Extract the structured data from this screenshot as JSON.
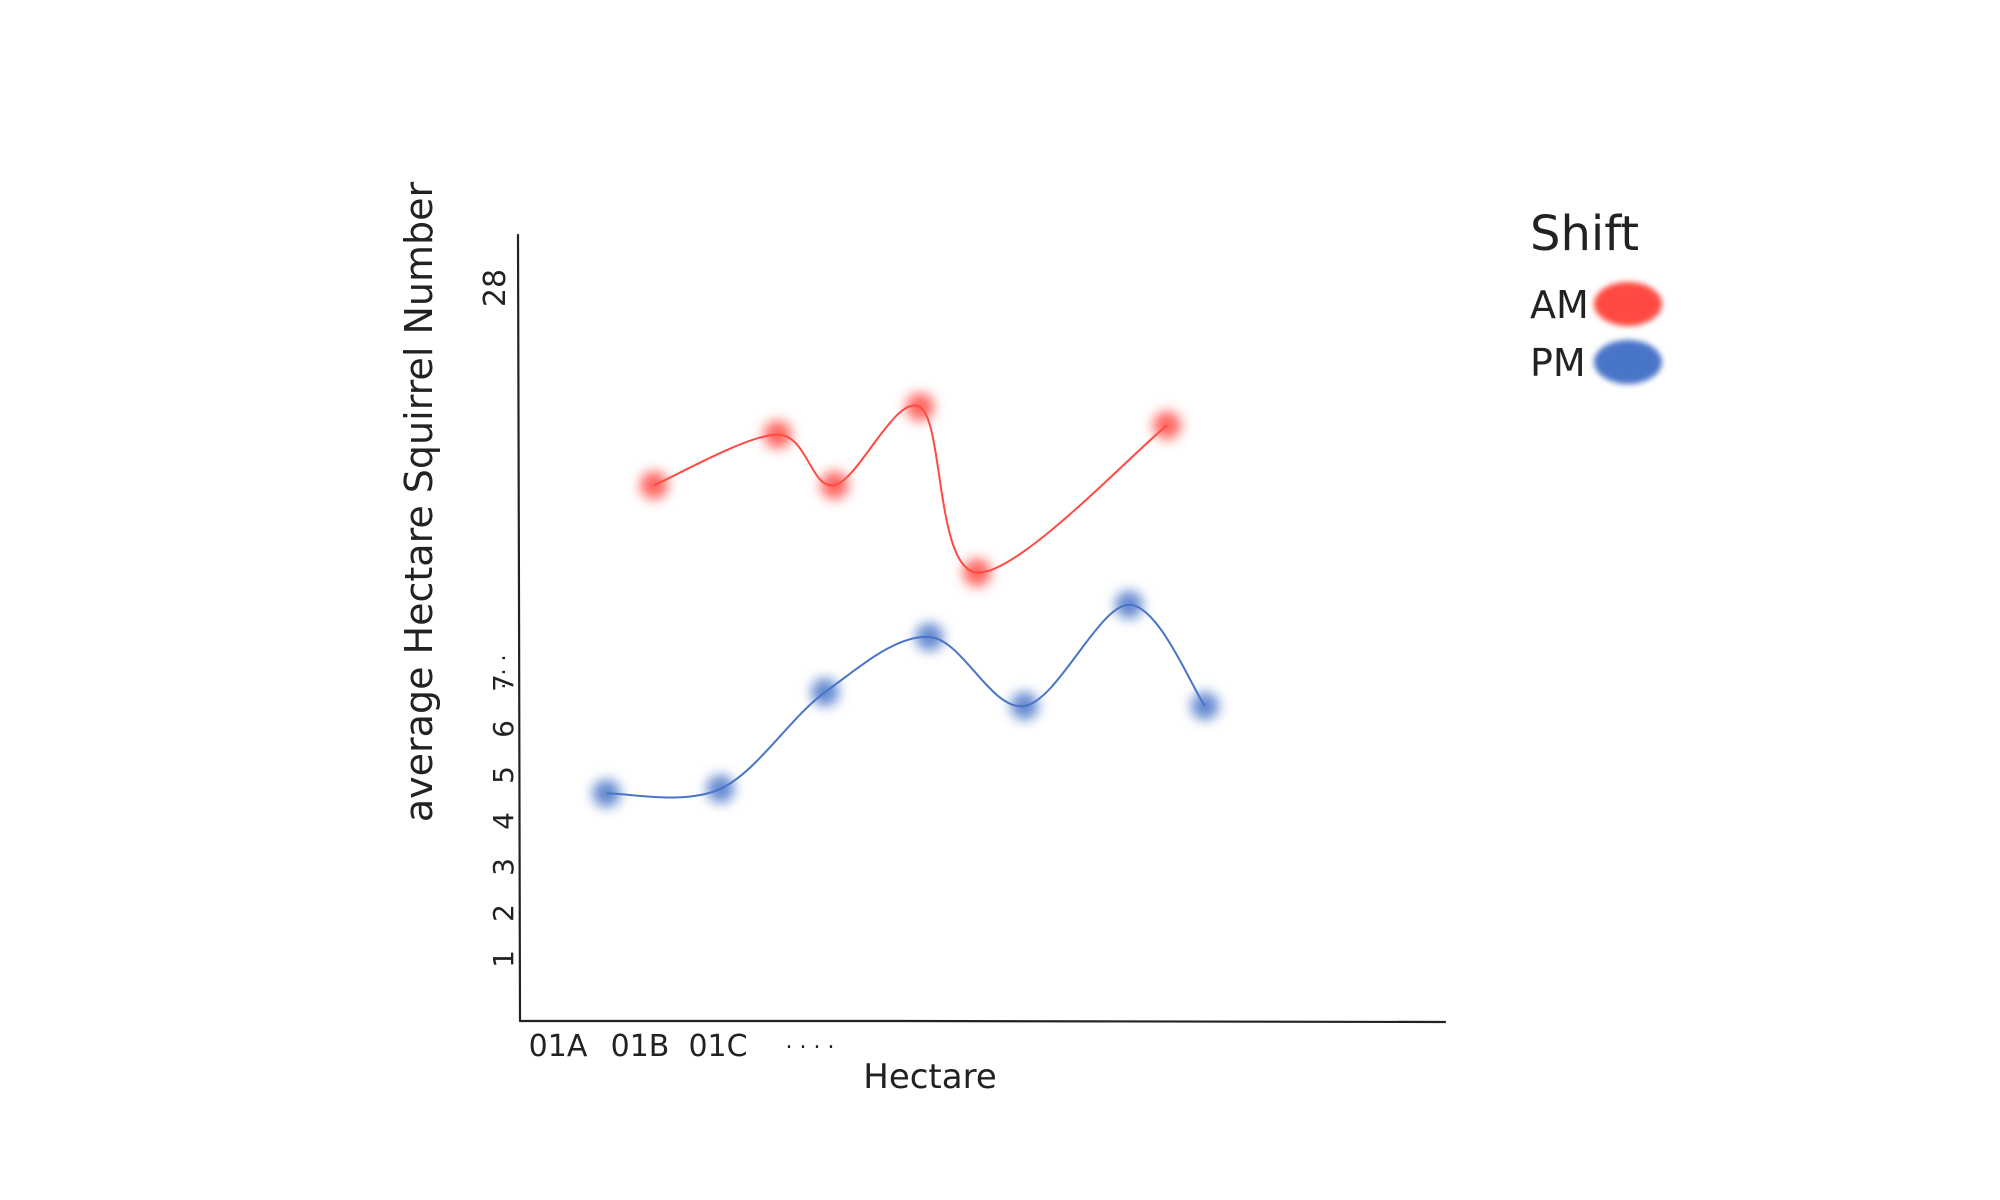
{
  "chart_data": {
    "type": "line",
    "xlabel": "Hectare",
    "ylabel": "average Hectare Squirrel Number",
    "x_tick_labels": [
      "01A",
      "01B",
      "01C"
    ],
    "x_ellipsis": ". . . .",
    "y_tick_labels": [
      "1",
      "2",
      "3",
      "4",
      "5",
      "6",
      "7"
    ],
    "y_ellipsis": ". . .",
    "y_top_label": "28",
    "ylim": [
      0,
      28
    ],
    "legend": {
      "title": "Shift",
      "position": "top-right"
    },
    "series": [
      {
        "name": "AM",
        "color": "#ff4a42",
        "points": [
          [
            1.2,
            11.3
          ],
          [
            2.5,
            12.4
          ],
          [
            3.1,
            11.3
          ],
          [
            4.0,
            13.0
          ],
          [
            4.6,
            9.4
          ],
          [
            6.6,
            12.6
          ]
        ]
      },
      {
        "name": "PM",
        "color": "#4a74c8",
        "points": [
          [
            0.7,
            4.6
          ],
          [
            1.9,
            4.7
          ],
          [
            3.0,
            6.8
          ],
          [
            4.1,
            8.0
          ],
          [
            5.1,
            6.5
          ],
          [
            6.2,
            8.7
          ],
          [
            7.0,
            6.5
          ]
        ]
      }
    ]
  }
}
